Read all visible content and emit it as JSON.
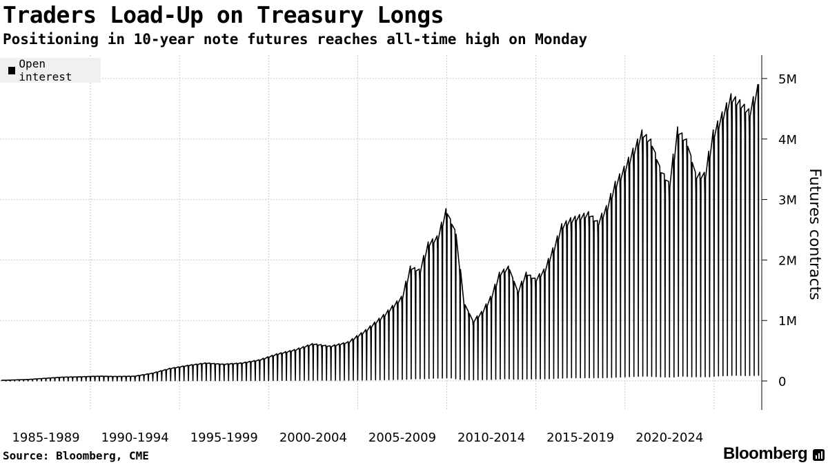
{
  "title": "Traders Load-Up on Treasury Longs",
  "subtitle": "Positioning in 10-year note futures reaches all-time high on Monday",
  "source": "Source: Bloomberg, CME",
  "brand": "Bloomberg",
  "chart_data": {
    "type": "area",
    "title": "Traders Load-Up on Treasury Longs",
    "subtitle": "Positioning in 10-year note futures reaches all-time high on Monday",
    "ylabel": "Futures contracts",
    "xlabel": "",
    "ylim": [
      0,
      5000000
    ],
    "xlim": [
      1982.5,
      2025.1
    ],
    "y_ticks": [
      {
        "value": 0,
        "label": "0"
      },
      {
        "value": 1000000,
        "label": "1M"
      },
      {
        "value": 2000000,
        "label": "2M"
      },
      {
        "value": 3000000,
        "label": "3M"
      },
      {
        "value": 4000000,
        "label": "4M"
      },
      {
        "value": 5000000,
        "label": "5M"
      }
    ],
    "x_ticks": [
      {
        "value": 1985,
        "label": "1985-1989"
      },
      {
        "value": 1990,
        "label": "1990-1994"
      },
      {
        "value": 1995,
        "label": "1995-1999"
      },
      {
        "value": 2000,
        "label": "2000-2004"
      },
      {
        "value": 2005,
        "label": "2005-2009"
      },
      {
        "value": 2010,
        "label": "2010-2014"
      },
      {
        "value": 2015,
        "label": "2015-2019"
      },
      {
        "value": 2020,
        "label": "2020-2024"
      }
    ],
    "legend": {
      "position": "top-left",
      "entries": [
        "Open interest"
      ]
    },
    "grid": true,
    "series": [
      {
        "name": "Open interest",
        "color": "#000000",
        "note_style": "quarterly contract roll causes sharp drops to near zero",
        "x": [
          1982.5,
          1983,
          1984,
          1985,
          1986,
          1987,
          1988,
          1989,
          1990,
          1991,
          1992,
          1993,
          1994,
          1995,
          1996,
          1997,
          1998,
          1999,
          2000,
          2001,
          2002,
          2003,
          2004,
          2005,
          2005.5,
          2006,
          2006.5,
          2007,
          2007.5,
          2008,
          2008.5,
          2009,
          2009.5,
          2010,
          2010.5,
          2011,
          2011.5,
          2012,
          2012.5,
          2013,
          2013.5,
          2014,
          2014.5,
          2015,
          2015.5,
          2016,
          2016.5,
          2017,
          2017.5,
          2018,
          2018.5,
          2019,
          2019.5,
          2020,
          2020.5,
          2021,
          2021.5,
          2022,
          2022.5,
          2023,
          2023.5,
          2024,
          2024.5,
          2025
        ],
        "values": [
          10000,
          15000,
          25000,
          45000,
          65000,
          70000,
          80000,
          75000,
          80000,
          130000,
          210000,
          260000,
          300000,
          280000,
          300000,
          350000,
          450000,
          520000,
          620000,
          580000,
          650000,
          850000,
          1100000,
          1400000,
          1900000,
          1850000,
          2300000,
          2400000,
          2850000,
          2500000,
          1300000,
          1000000,
          1150000,
          1400000,
          1800000,
          1900000,
          1500000,
          1800000,
          1700000,
          1850000,
          2200000,
          2600000,
          2700000,
          2750000,
          2800000,
          2650000,
          2900000,
          3300000,
          3550000,
          3850000,
          4150000,
          4000000,
          3550000,
          3300000,
          4200000,
          4000000,
          3450000,
          3450000,
          4150000,
          4450000,
          4750000,
          4650000,
          4500000,
          4900000
        ]
      }
    ]
  }
}
